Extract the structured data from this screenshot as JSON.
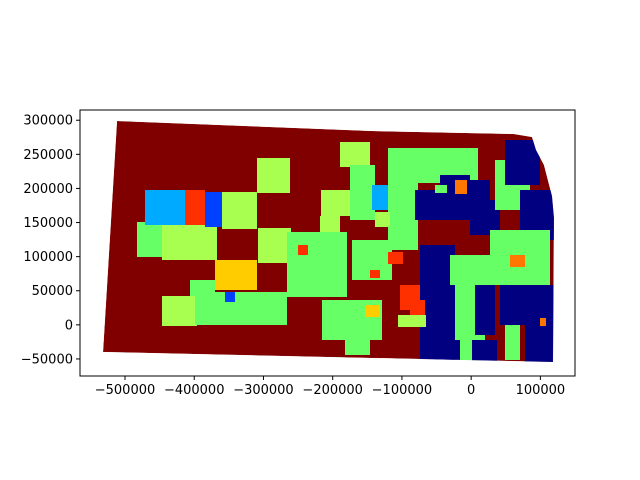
{
  "chart_data": {
    "type": "map",
    "title": "",
    "xlabel": "",
    "ylabel": "",
    "xlim": [
      -565000,
      150000
    ],
    "ylim": [
      -75000,
      315000
    ],
    "x_ticks": [
      -500000,
      -400000,
      -300000,
      -200000,
      -100000,
      0,
      100000
    ],
    "x_tick_labels": [
      "−500000",
      "−400000",
      "−300000",
      "−200000",
      "−100000",
      "0",
      "100000"
    ],
    "y_ticks": [
      -50000,
      0,
      50000,
      100000,
      150000,
      200000,
      250000,
      300000
    ],
    "y_tick_labels": [
      "−50000",
      "0",
      "50000",
      "100000",
      "150000",
      "200000",
      "250000",
      "300000"
    ],
    "grid": false,
    "legend": "none",
    "colormap": "jet",
    "colors": {
      "dark_red": "#800000",
      "light_green": "#66ff66",
      "yellow_green": "#a8ff50",
      "dark_blue": "#000080",
      "sky_blue": "#00aaff",
      "blue": "#0040ff",
      "red_orange": "#ff3000",
      "gold": "#ffcc00",
      "orange": "#ff7700",
      "aquamarine": "#40ffb0"
    }
  }
}
